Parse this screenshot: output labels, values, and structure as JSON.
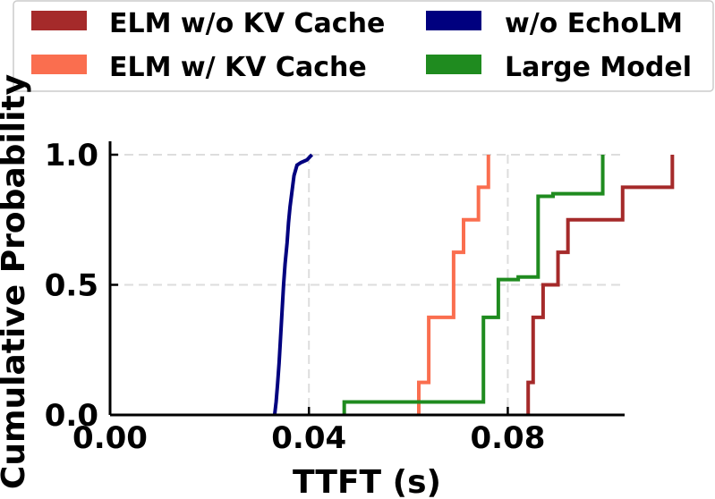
{
  "chart_data": {
    "type": "line",
    "title": "",
    "xlabel": "TTFT (s)",
    "ylabel": "Cumulative Probability",
    "xlim": [
      0.0,
      0.1035
    ],
    "ylim": [
      0.0,
      1.0
    ],
    "xticks": [
      0.0,
      0.04,
      0.08
    ],
    "xtick_labels": [
      "0.00",
      "0.04",
      "0.08"
    ],
    "yticks": [
      0.0,
      0.5,
      1.0
    ],
    "ytick_labels": [
      "0.0",
      "0.5",
      "1.0"
    ],
    "grid": true,
    "legend_position": "top",
    "series": [
      {
        "name": "ELM w/o KV Cache",
        "color": "#a52a2a",
        "x": [
          0.0841,
          0.0841,
          0.0851,
          0.0851,
          0.0871,
          0.0871,
          0.0901,
          0.0901,
          0.0921,
          0.0921,
          0.1031,
          0.1031,
          0.1131,
          0.1131
        ],
        "y": [
          0.0,
          0.125,
          0.125,
          0.375,
          0.375,
          0.5,
          0.5,
          0.625,
          0.625,
          0.75,
          0.75,
          0.875,
          0.875,
          1.0
        ]
      },
      {
        "name": "ELM w/ KV Cache",
        "color": "#fa6e4f",
        "x": [
          0.0621,
          0.0621,
          0.0641,
          0.0641,
          0.0691,
          0.0691,
          0.0711,
          0.0711,
          0.0741,
          0.0741,
          0.0761,
          0.0761
        ],
        "y": [
          0.0,
          0.125,
          0.125,
          0.375,
          0.375,
          0.625,
          0.625,
          0.75,
          0.75,
          0.875,
          0.875,
          1.0
        ]
      },
      {
        "name": "w/o EchoLM",
        "color": "#00007f",
        "x": [
          0.0331,
          0.0334,
          0.0337,
          0.034,
          0.0343,
          0.0346,
          0.0349,
          0.0352,
          0.0356,
          0.0359,
          0.0362,
          0.0366,
          0.037,
          0.0376,
          0.0384,
          0.0396,
          0.0406
        ],
        "y": [
          0.0,
          0.05,
          0.12,
          0.2,
          0.3,
          0.4,
          0.5,
          0.58,
          0.66,
          0.74,
          0.8,
          0.86,
          0.92,
          0.96,
          0.97,
          0.98,
          1.0
        ]
      },
      {
        "name": "Large Model",
        "color": "#1f8b1f",
        "x": [
          0.0471,
          0.0471,
          0.0751,
          0.0751,
          0.0781,
          0.0781,
          0.0821,
          0.0821,
          0.0861,
          0.0861,
          0.0891,
          0.0891,
          0.0991,
          0.0991
        ],
        "y": [
          0.0,
          0.05,
          0.05,
          0.375,
          0.375,
          0.52,
          0.52,
          0.53,
          0.53,
          0.84,
          0.84,
          0.85,
          0.85,
          1.0
        ]
      }
    ]
  }
}
